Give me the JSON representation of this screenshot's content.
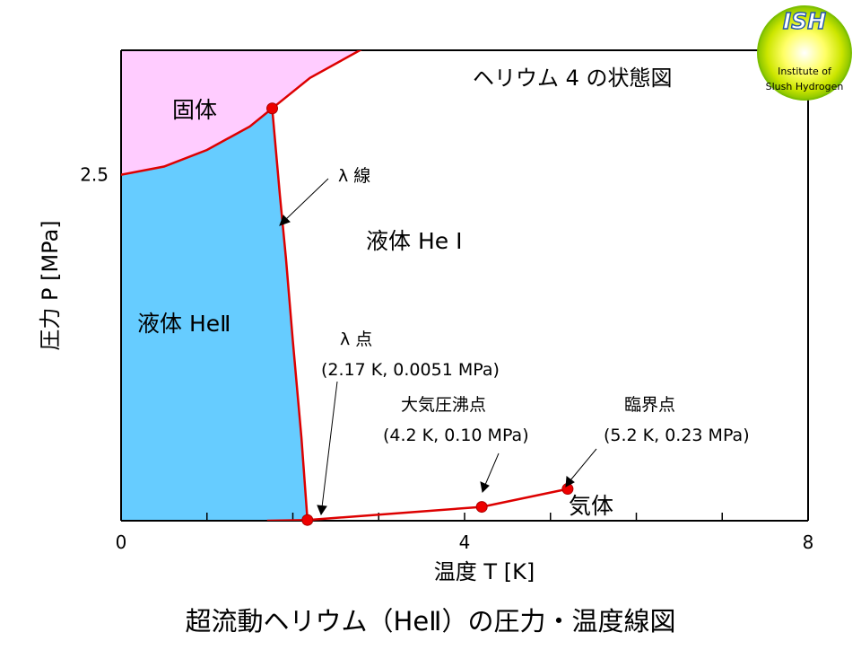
{
  "chart_data": {
    "type": "line",
    "title": "ヘリウム 4 の状態図",
    "caption": "超流動ヘリウム（HeⅡ）の圧力・温度線図",
    "xlabel": "温度 T [K]",
    "ylabel": "圧力 P [MPa]",
    "xlim": [
      0,
      8
    ],
    "ylim": [
      0,
      3.4
    ],
    "x_ticks": [
      {
        "value": 0,
        "label": "0"
      },
      {
        "value": 4,
        "label": "4"
      },
      {
        "value": 8,
        "label": "8"
      }
    ],
    "x_minor_ticks": [
      1,
      2,
      3,
      5,
      6,
      7
    ],
    "y_ticks": [
      {
        "value": 2.5,
        "label": "2.5"
      }
    ],
    "grid": false,
    "regions": [
      {
        "label": "固体",
        "color": "#FFCCFF"
      },
      {
        "label": "液体 HeⅡ",
        "color": "#66CCFF"
      },
      {
        "label": "液体 He Ⅰ",
        "color": "#FFFFFF"
      },
      {
        "label": "気体",
        "color": "#FFFFFF"
      }
    ],
    "series": [
      {
        "x": [
          0.0,
          0.5,
          1.0,
          1.5,
          1.76,
          2.2,
          2.84
        ],
        "y": [
          2.5,
          2.56,
          2.68,
          2.85,
          2.98,
          3.2,
          3.42
        ],
        "color": "#DD0000"
      },
      {
        "x": [
          1.76,
          1.85,
          1.92,
          2.0,
          2.1,
          2.17
        ],
        "y": [
          2.98,
          2.35,
          1.9,
          1.3,
          0.6,
          0.0051
        ],
        "color": "#DD0000"
      },
      {
        "x": [
          1.7,
          2.17,
          4.2,
          5.2
        ],
        "y": [
          0.0,
          0.0051,
          0.1,
          0.23
        ],
        "color": "#DD0000"
      }
    ],
    "points": [
      {
        "x": 1.76,
        "y": 2.98
      },
      {
        "x": 2.17,
        "y": 0.0051
      },
      {
        "x": 4.2,
        "y": 0.1
      },
      {
        "x": 5.2,
        "y": 0.23
      }
    ],
    "annotations": {
      "lambda_line": "λ 線",
      "lambda_point": "λ 点",
      "lambda_point_value": "(2.17 K, 0.0051 MPa)",
      "boiling_point": "大気圧沸点",
      "boiling_point_value": "(4.2 K, 0.10 MPa)",
      "critical_point": "臨界点",
      "critical_point_value": "(5.2 K, 0.23 MPa)"
    }
  },
  "logo": {
    "title": "ISH",
    "line1": "Institute of",
    "line2": "Slush Hydrogen"
  }
}
